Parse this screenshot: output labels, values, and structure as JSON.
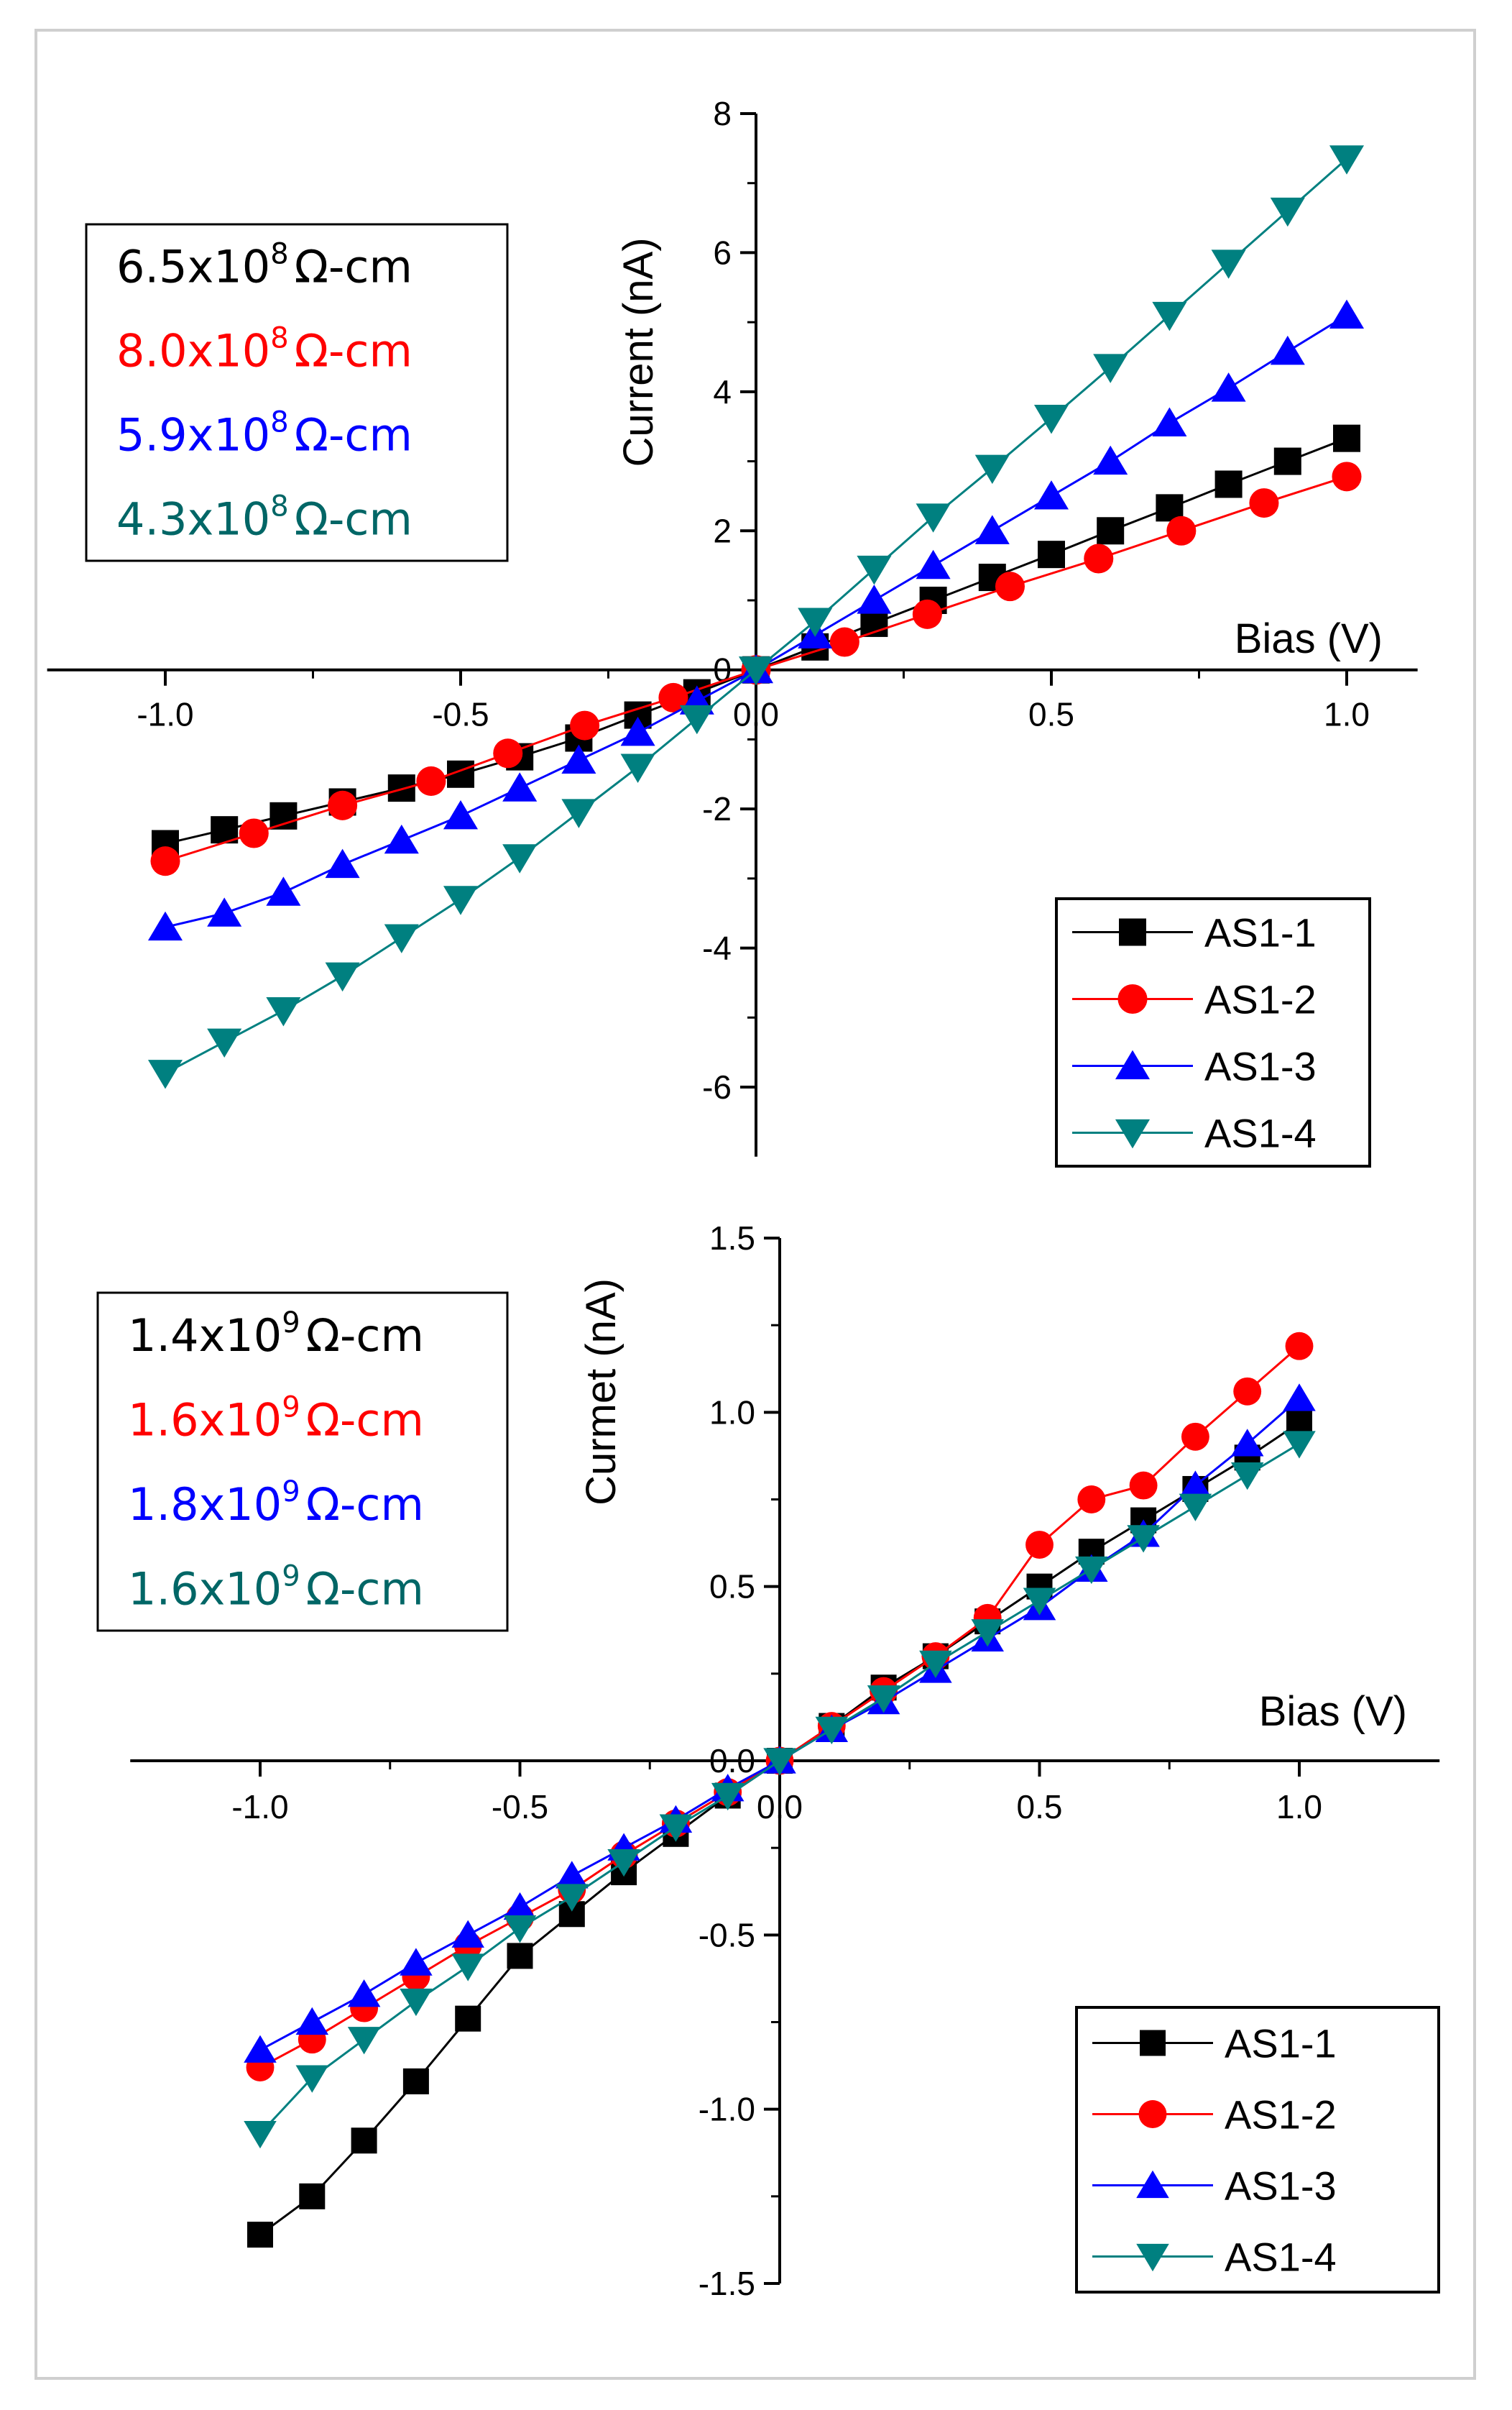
{
  "chart_data": [
    {
      "type": "line",
      "ylabel": "Current (nA)",
      "xlabel": "Bias (V)",
      "xlim": [
        -1.2,
        1.12
      ],
      "ylim": [
        -7,
        8
      ],
      "xticks": [
        -1.0,
        -0.5,
        0.0,
        0.5,
        1.0
      ],
      "xtick_labels": [
        "-1.0",
        "-0.5",
        "0.0",
        "0.5",
        "1.0"
      ],
      "yticks": [
        -6,
        -4,
        -2,
        0,
        2,
        4,
        6,
        8
      ],
      "ytick_labels": [
        "-6",
        "-4",
        "-2",
        "0",
        "2",
        "4",
        "6",
        "8"
      ],
      "legend_position": "bottom-right",
      "resistivity_position": "top-left",
      "resistivity": [
        {
          "label": "6.5x10",
          "exp": "8",
          "unit": "Ω-cm",
          "color": "#000000"
        },
        {
          "label": "8.0x10",
          "exp": "8",
          "unit": "Ω-cm",
          "color": "#ff0000"
        },
        {
          "label": "5.9x10",
          "exp": "8",
          "unit": "Ω-cm",
          "color": "#0000ff"
        },
        {
          "label": "4.3x10",
          "exp": "8",
          "unit": "Ω-cm",
          "color": "#006666"
        }
      ],
      "series": [
        {
          "name": "AS1-1",
          "color": "#000000",
          "marker": "square",
          "x": [
            -1.0,
            -0.9,
            -0.8,
            -0.7,
            -0.6,
            -0.5,
            -0.4,
            -0.3,
            -0.2,
            -0.1,
            0.0,
            0.1,
            0.2,
            0.3,
            0.4,
            0.5,
            0.6,
            0.7,
            0.8,
            0.9,
            1.0
          ],
          "y": [
            -2.5,
            -2.3,
            -2.1,
            -1.9,
            -1.7,
            -1.5,
            -1.25,
            -0.98,
            -0.65,
            -0.33,
            0.0,
            0.33,
            0.67,
            1.0,
            1.33,
            1.66,
            2.0,
            2.33,
            2.67,
            3.0,
            3.33
          ]
        },
        {
          "name": "AS1-2",
          "color": "#ff0000",
          "marker": "circle",
          "x": [
            -1.0,
            -0.85,
            -0.7,
            -0.55,
            -0.42,
            -0.29,
            -0.14,
            0.0,
            0.15,
            0.29,
            0.43,
            0.58,
            0.72,
            0.86,
            1.0
          ],
          "y": [
            -2.75,
            -2.35,
            -1.95,
            -1.6,
            -1.2,
            -0.8,
            -0.4,
            0.0,
            0.4,
            0.8,
            1.2,
            1.6,
            2.0,
            2.4,
            2.78
          ]
        },
        {
          "name": "AS1-3",
          "color": "#0000ff",
          "marker": "triangle-up",
          "x": [
            -1.0,
            -0.9,
            -0.8,
            -0.7,
            -0.6,
            -0.5,
            -0.4,
            -0.3,
            -0.2,
            -0.1,
            0.0,
            0.1,
            0.2,
            0.3,
            0.4,
            0.5,
            0.6,
            0.7,
            0.8,
            0.9,
            1.0
          ],
          "y": [
            -3.7,
            -3.5,
            -3.2,
            -2.8,
            -2.45,
            -2.1,
            -1.7,
            -1.3,
            -0.9,
            -0.45,
            0.0,
            0.5,
            1.0,
            1.5,
            2.0,
            2.5,
            3.0,
            3.55,
            4.05,
            4.58,
            5.1
          ]
        },
        {
          "name": "AS1-4",
          "color": "#008080",
          "marker": "triangle-down",
          "x": [
            -1.0,
            -0.9,
            -0.8,
            -0.7,
            -0.6,
            -0.5,
            -0.4,
            -0.3,
            -0.2,
            -0.1,
            0.0,
            0.1,
            0.2,
            0.3,
            0.4,
            0.5,
            0.6,
            0.7,
            0.8,
            0.9,
            1.0
          ],
          "y": [
            -5.8,
            -5.35,
            -4.9,
            -4.4,
            -3.85,
            -3.3,
            -2.7,
            -2.05,
            -1.4,
            -0.7,
            0.0,
            0.7,
            1.45,
            2.2,
            2.9,
            3.62,
            4.35,
            5.1,
            5.85,
            6.6,
            7.35
          ]
        }
      ]
    },
    {
      "type": "line",
      "ylabel": "Curmet (nA)",
      "xlabel": "Bias (V)",
      "xlim": [
        -1.25,
        1.27
      ],
      "ylim": [
        -1.5,
        1.5
      ],
      "xticks": [
        -1.0,
        -0.5,
        0.0,
        0.5,
        1.0
      ],
      "xtick_labels": [
        "-1.0",
        "-0.5",
        "0.0",
        "0.5",
        "1.0"
      ],
      "yticks": [
        -1.5,
        -1.0,
        -0.5,
        0.0,
        0.5,
        1.0,
        1.5
      ],
      "ytick_labels": [
        "-1.5",
        "-1.0",
        "-0.5",
        "0.0",
        "0.5",
        "1.0",
        "1.5"
      ],
      "legend_position": "bottom-right",
      "resistivity_position": "top-left",
      "resistivity": [
        {
          "label": "1.4x10",
          "exp": "9",
          "unit": "Ω-cm",
          "color": "#000000"
        },
        {
          "label": "1.6x10",
          "exp": "9",
          "unit": "Ω-cm",
          "color": "#ff0000"
        },
        {
          "label": "1.8x10",
          "exp": "9",
          "unit": "Ω-cm",
          "color": "#0000ff"
        },
        {
          "label": "1.6x10",
          "exp": "9",
          "unit": "Ω-cm",
          "color": "#006666"
        }
      ],
      "series": [
        {
          "name": "AS1-1",
          "color": "#000000",
          "marker": "square",
          "x": [
            -1.0,
            -0.9,
            -0.8,
            -0.7,
            -0.6,
            -0.5,
            -0.4,
            -0.3,
            -0.2,
            -0.1,
            0.0,
            0.1,
            0.2,
            0.3,
            0.4,
            0.5,
            0.6,
            0.7,
            0.8,
            0.9,
            1.0
          ],
          "y": [
            -1.36,
            -1.25,
            -1.09,
            -0.92,
            -0.74,
            -0.56,
            -0.44,
            -0.32,
            -0.21,
            -0.1,
            0.0,
            0.1,
            0.21,
            0.3,
            0.4,
            0.5,
            0.6,
            0.69,
            0.78,
            0.87,
            0.97
          ]
        },
        {
          "name": "AS1-2",
          "color": "#ff0000",
          "marker": "circle",
          "x": [
            -1.0,
            -0.9,
            -0.8,
            -0.7,
            -0.6,
            -0.5,
            -0.4,
            -0.3,
            -0.2,
            -0.1,
            0.0,
            0.1,
            0.2,
            0.3,
            0.4,
            0.5,
            0.6,
            0.7,
            0.8,
            0.9,
            1.0
          ],
          "y": [
            -0.88,
            -0.8,
            -0.71,
            -0.62,
            -0.53,
            -0.45,
            -0.37,
            -0.27,
            -0.18,
            -0.09,
            0.0,
            0.1,
            0.2,
            0.3,
            0.41,
            0.62,
            0.75,
            0.79,
            0.93,
            1.06,
            1.19
          ]
        },
        {
          "name": "AS1-3",
          "color": "#0000ff",
          "marker": "triangle-up",
          "x": [
            -1.0,
            -0.9,
            -0.8,
            -0.7,
            -0.6,
            -0.5,
            -0.4,
            -0.3,
            -0.2,
            -0.1,
            0.0,
            0.1,
            0.2,
            0.3,
            0.4,
            0.5,
            0.6,
            0.7,
            0.8,
            0.9,
            1.0
          ],
          "y": [
            -0.83,
            -0.75,
            -0.67,
            -0.58,
            -0.5,
            -0.42,
            -0.33,
            -0.25,
            -0.17,
            -0.08,
            0.0,
            0.09,
            0.17,
            0.26,
            0.35,
            0.44,
            0.55,
            0.65,
            0.79,
            0.91,
            1.04
          ]
        },
        {
          "name": "AS1-4",
          "color": "#008080",
          "marker": "triangle-down",
          "x": [
            -1.0,
            -0.9,
            -0.8,
            -0.7,
            -0.6,
            -0.5,
            -0.4,
            -0.3,
            -0.2,
            -0.1,
            0.0,
            0.1,
            0.2,
            0.3,
            0.4,
            0.5,
            0.6,
            0.7,
            0.8,
            0.9,
            1.0
          ],
          "y": [
            -1.07,
            -0.91,
            -0.8,
            -0.69,
            -0.59,
            -0.48,
            -0.39,
            -0.29,
            -0.19,
            -0.1,
            0.0,
            0.09,
            0.18,
            0.28,
            0.37,
            0.46,
            0.55,
            0.64,
            0.73,
            0.82,
            0.91
          ]
        }
      ]
    }
  ]
}
